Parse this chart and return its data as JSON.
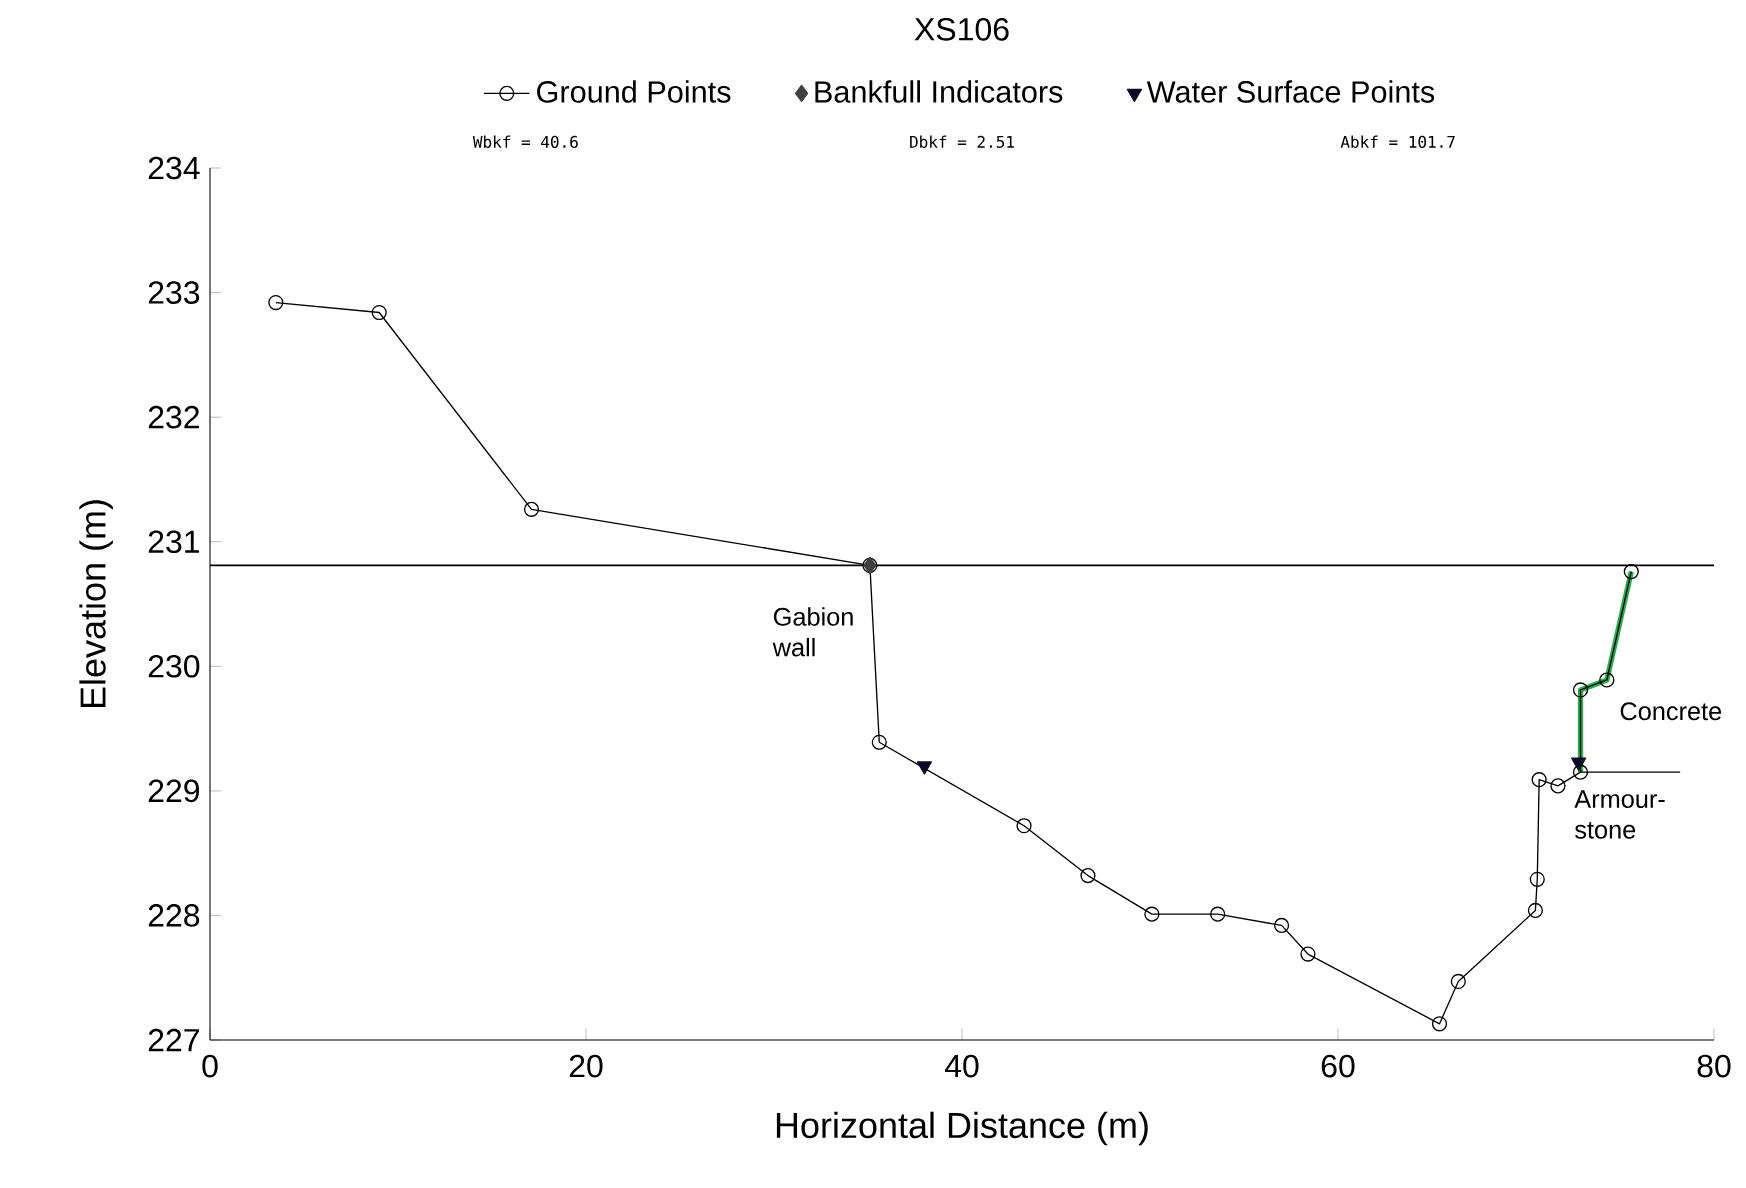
{
  "chart_data": {
    "type": "line",
    "title": "XS106",
    "xlabel": "Horizontal Distance (m)",
    "ylabel": "Elevation (m)",
    "xlim": [
      0,
      80
    ],
    "ylim": [
      227,
      234
    ],
    "xticks": [
      0,
      20,
      40,
      60,
      80
    ],
    "yticks": [
      227,
      228,
      229,
      230,
      231,
      232,
      233,
      234
    ],
    "grid": false,
    "legend": "top",
    "series": [
      {
        "name": "Ground Points",
        "marker": "circle",
        "color": "#000000",
        "x": [
          3.5,
          9.0,
          17.1,
          35.1,
          35.6,
          43.3,
          46.7,
          50.1,
          53.6,
          57.0,
          58.4,
          65.4,
          66.4,
          70.5,
          70.6,
          70.7,
          71.7,
          72.9,
          72.9,
          74.3,
          75.6
        ],
        "values": [
          232.92,
          232.84,
          231.26,
          230.81,
          229.39,
          228.72,
          228.32,
          228.01,
          228.01,
          227.92,
          227.69,
          227.13,
          227.47,
          228.04,
          228.29,
          229.09,
          229.04,
          229.15,
          229.81,
          229.89,
          230.76
        ]
      },
      {
        "name": "Bankfull Indicators",
        "type": "scatter",
        "marker": "diamond",
        "color": "#404040",
        "x": [
          35.1
        ],
        "values": [
          230.81
        ]
      },
      {
        "name": "Water Surface Points",
        "type": "scatter",
        "marker": "triangle",
        "color": "#0a0a28",
        "x": [
          38.0,
          72.8
        ],
        "values": [
          229.2,
          229.23
        ]
      },
      {
        "marker": "none",
        "color": "#22b14c",
        "x": [
          72.9,
          72.9,
          74.3,
          75.6
        ],
        "values": [
          229.15,
          229.81,
          229.89,
          230.76
        ]
      },
      {
        "marker": "none",
        "color": "#000000",
        "x": [
          72.9,
          78.2
        ],
        "values": [
          229.15,
          229.15
        ]
      }
    ],
    "ref_lines": [
      {
        "axis": "y",
        "value": 230.81,
        "color": "#000000"
      }
    ],
    "annotations": [
      "Wbkf = 40.6",
      "Dbkf = 2.51",
      "Abkf = 101.7",
      "Gabion wall",
      "Concrete",
      "Armour-stone"
    ]
  }
}
